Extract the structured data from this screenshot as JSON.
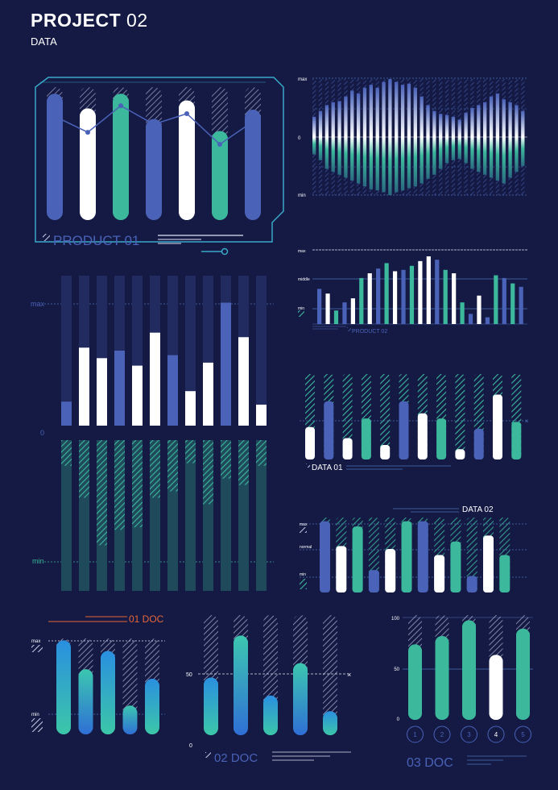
{
  "header": {
    "title_bold": "PROJECT",
    "title_light": " 02",
    "subtitle": "DATA"
  },
  "colors": {
    "bg": "#141a44",
    "blue": "#4a62b8",
    "teal": "#3cb89c",
    "white": "#ffffff",
    "orange": "#e8663a",
    "grid": "#4b6fb5",
    "track": "#222b5f",
    "dark_teal": "#1f4a5c"
  },
  "chart_data": [
    {
      "id": "product01",
      "type": "bar",
      "title": "PRODUCT 01",
      "values": [
        0.95,
        0.84,
        0.95,
        0.76,
        0.9,
        0.67,
        0.83
      ],
      "colors": [
        "blue",
        "white",
        "teal",
        "blue",
        "white",
        "teal",
        "blue"
      ],
      "line": [
        0.78,
        0.66,
        0.86,
        0.72,
        0.8,
        0.57,
        0.74
      ]
    },
    {
      "id": "wave",
      "type": "bar",
      "labels": {
        "max": "max",
        "zero": "0",
        "min": "min"
      },
      "top": [
        0.35,
        0.45,
        0.55,
        0.6,
        0.62,
        0.7,
        0.8,
        0.75,
        0.85,
        0.9,
        0.85,
        0.95,
        1.0,
        0.95,
        0.9,
        0.92,
        0.85,
        0.7,
        0.55,
        0.45,
        0.4,
        0.38,
        0.35,
        0.3,
        0.42,
        0.5,
        0.55,
        0.6,
        0.7,
        0.75,
        0.65,
        0.6,
        0.55,
        0.45
      ],
      "bottom": [
        0.3,
        0.4,
        0.55,
        0.6,
        0.65,
        0.7,
        0.75,
        0.8,
        0.85,
        0.9,
        0.92,
        0.95,
        1.0,
        0.95,
        0.92,
        0.88,
        0.85,
        0.8,
        0.72,
        0.65,
        0.55,
        0.45,
        0.4,
        0.38,
        0.45,
        0.55,
        0.6,
        0.65,
        0.7,
        0.75,
        0.8,
        0.7,
        0.6,
        0.5
      ]
    },
    {
      "id": "product02",
      "type": "bar",
      "title": "PRODUCT 02",
      "labels": {
        "max": "max",
        "middle": "middle",
        "min": "min"
      },
      "values": [
        0.52,
        0.45,
        0.2,
        0.32,
        0.38,
        0.68,
        0.75,
        0.82,
        0.9,
        0.78,
        0.8,
        0.86,
        0.93,
        1.0,
        0.95,
        0.8,
        0.75,
        0.32,
        0.15,
        0.42,
        0.1,
        0.72,
        0.68,
        0.6,
        0.55
      ],
      "colors": [
        "blue",
        "white",
        "teal",
        "blue",
        "white",
        "teal",
        "white",
        "blue",
        "teal",
        "white",
        "blue",
        "teal",
        "white",
        "white",
        "blue",
        "teal",
        "white",
        "teal",
        "blue",
        "white",
        "blue",
        "teal",
        "blue",
        "teal",
        "blue"
      ]
    },
    {
      "id": "maxmin",
      "type": "bar",
      "labels": {
        "max": "max",
        "zero": "0",
        "min": "min"
      },
      "top": [
        0.16,
        0.52,
        0.45,
        0.5,
        0.4,
        0.62,
        0.47,
        0.23,
        0.42,
        0.82,
        0.59,
        0.14
      ],
      "top_colors": [
        "blue",
        "white",
        "white",
        "blue",
        "white",
        "white",
        "blue",
        "white",
        "white",
        "blue",
        "white",
        "white"
      ],
      "bottom": [
        0.2,
        0.45,
        0.82,
        0.7,
        0.68,
        0.45,
        0.4,
        0.18,
        0.5,
        0.3,
        0.35,
        0.2
      ]
    },
    {
      "id": "data01",
      "type": "bar",
      "title": "DATA 01",
      "values": [
        0.38,
        0.68,
        0.25,
        0.48,
        0.17,
        0.68,
        0.54,
        0.48,
        0.12,
        0.36,
        0.76,
        0.44
      ],
      "colors": [
        "white",
        "blue",
        "white",
        "teal",
        "white",
        "blue",
        "white",
        "teal",
        "white",
        "blue",
        "white",
        "teal"
      ]
    },
    {
      "id": "data02",
      "type": "bar",
      "title": "DATA 02",
      "labels": {
        "max": "max",
        "normal": "normal",
        "min": "min"
      },
      "values": [
        0.95,
        0.62,
        0.88,
        0.3,
        0.58,
        0.95,
        0.95,
        0.5,
        0.68,
        0.22,
        0.76,
        0.5
      ],
      "colors": [
        "blue",
        "white",
        "teal",
        "blue",
        "white",
        "teal",
        "blue",
        "white",
        "teal",
        "blue",
        "white",
        "teal"
      ]
    },
    {
      "id": "doc01",
      "type": "bar",
      "title": "01 DOC",
      "labels": {
        "max": "max",
        "min": "min"
      },
      "values": [
        0.98,
        0.68,
        0.87,
        0.3,
        0.58
      ],
      "colors": [
        "blue",
        "teal",
        "blue",
        "teal",
        "blue"
      ]
    },
    {
      "id": "doc02",
      "type": "bar",
      "title": "02 DOC",
      "labels": {
        "mid": "50",
        "zero": "0"
      },
      "values": [
        0.48,
        0.83,
        0.33,
        0.6,
        0.2
      ],
      "colors": [
        "blue",
        "teal",
        "blue",
        "teal",
        "blue"
      ]
    },
    {
      "id": "doc03",
      "type": "bar",
      "title": "03 DOC",
      "labels": {
        "top": "100",
        "mid": "50",
        "zero": "0"
      },
      "values": [
        0.72,
        0.8,
        0.95,
        0.62,
        0.87
      ],
      "colors": [
        "teal",
        "teal",
        "teal",
        "white",
        "teal"
      ],
      "categories": [
        "1",
        "2",
        "3",
        "4",
        "5"
      ]
    }
  ]
}
